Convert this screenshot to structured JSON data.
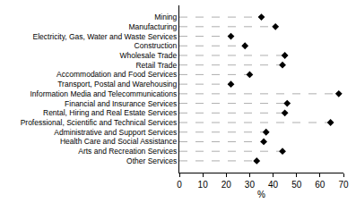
{
  "chart_data": {
    "type": "scatter",
    "orientation": "horizontal",
    "categories": [
      "Mining",
      "Manufacturing",
      "Electricity, Gas, Water and Waste Services",
      "Construction",
      "Wholesale Trade",
      "Retail Trade",
      "Accommodation and Food Services",
      "Transport, Postal and Warehousing",
      "Information Media and Telecommunications",
      "Financial and Insurance Services",
      "Rental, Hiring and Real Estate Services",
      "Professional, Scientific and Technical Services",
      "Administrative and Support Services",
      "Health Care and Social Assistance",
      "Arts and Recreation Services",
      "Other Services"
    ],
    "values": [
      35,
      41,
      22,
      28,
      45,
      44,
      30,
      22,
      68,
      46,
      45,
      64.5,
      37,
      36,
      44,
      33
    ],
    "color": "#000000",
    "marker": "diamond",
    "line_style": "dashed",
    "xlabel": "%",
    "xlim": [
      0,
      70
    ],
    "xticks": [
      0,
      10,
      20,
      30,
      40,
      50,
      60,
      70
    ],
    "grid": false
  }
}
